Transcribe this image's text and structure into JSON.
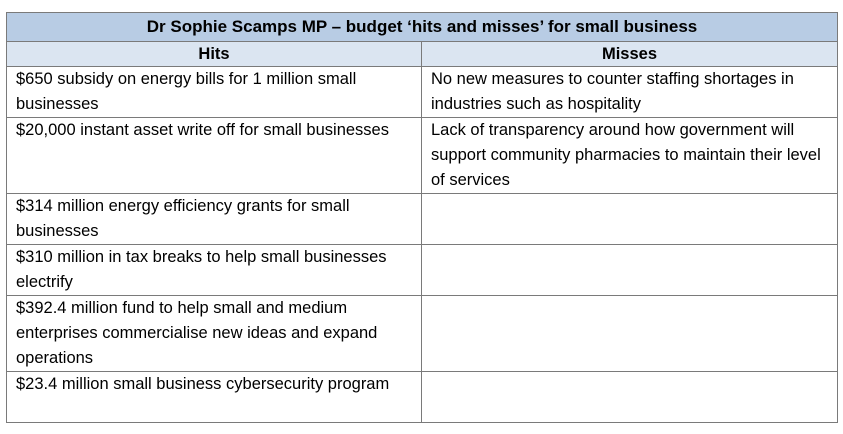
{
  "table": {
    "title": "Dr Sophie Scamps MP – budget ‘hits and misses’ for small business",
    "headers": {
      "hits": "Hits",
      "misses": "Misses"
    },
    "rows": [
      {
        "hit": "$650 subsidy on energy bills for 1 million small businesses",
        "miss": "No new measures to counter staffing shortages in industries such as hospitality"
      },
      {
        "hit": "$20,000 instant asset write off for small businesses",
        "miss": "Lack of transparency around how government will support community pharmacies to maintain their level of services"
      },
      {
        "hit": "$314 million energy efficiency grants for small businesses",
        "miss": ""
      },
      {
        "hit": "$310 million in tax breaks to help small businesses electrify",
        "miss": ""
      },
      {
        "hit": "$392.4 million fund to help small and medium enterprises commercialise new ideas and expand operations",
        "miss": ""
      },
      {
        "hit": "$23.4 million small business cybersecurity program",
        "miss": ""
      }
    ]
  }
}
